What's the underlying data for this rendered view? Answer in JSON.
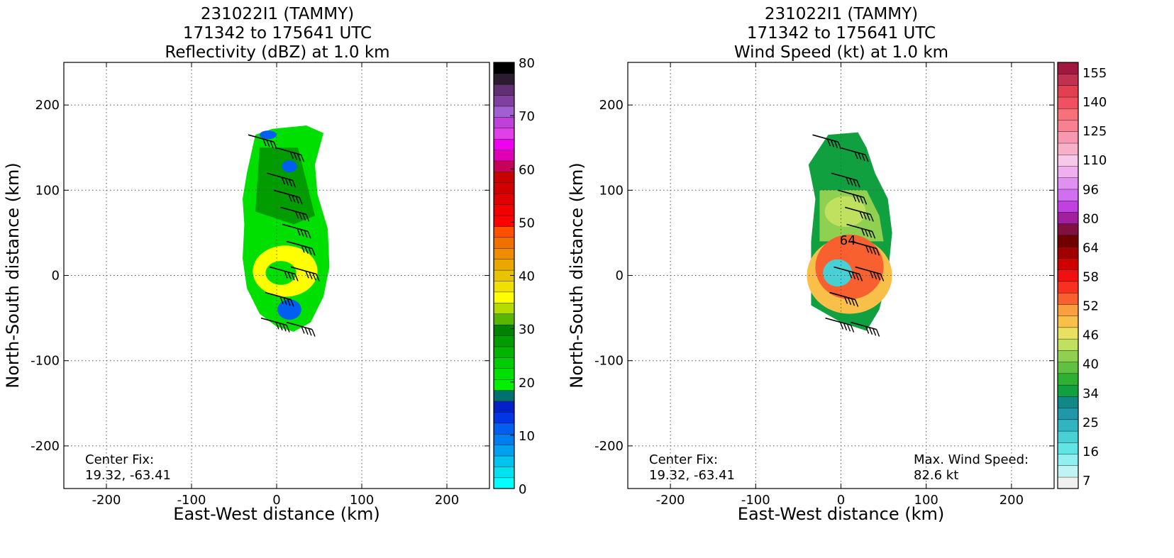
{
  "chart_data": [
    {
      "type": "heatmap",
      "id": "reflectivity",
      "title_lines": [
        "231022I1 (TAMMY)",
        "171342 to 175641 UTC",
        "Reflectivity (dBZ) at 1.0 km"
      ],
      "xlabel": "East-West distance (km)",
      "ylabel": "North-South distance (km)",
      "xlim": [
        -250,
        250
      ],
      "ylim": [
        -250,
        250
      ],
      "xticks": [
        -200,
        -100,
        0,
        100,
        200
      ],
      "yticks": [
        -200,
        -100,
        0,
        100,
        200
      ],
      "grid": true,
      "annotations": [
        {
          "name": "center-fix",
          "lines": [
            "Center Fix:",
            "19.32, -63.41"
          ]
        }
      ],
      "colorbar": {
        "min": 0,
        "max": 80,
        "ticks": [
          0,
          10,
          20,
          30,
          40,
          50,
          60,
          70,
          80
        ],
        "colors": [
          "#00ffff",
          "#00e2f0",
          "#00c3f0",
          "#00a0f0",
          "#007ef0",
          "#005ef0",
          "#0036e6",
          "#0022c8",
          "#007070",
          "#00f000",
          "#00e000",
          "#00cc00",
          "#00b400",
          "#009c00",
          "#008400",
          "#58b800",
          "#b4dc00",
          "#ffff00",
          "#f0e000",
          "#e8c400",
          "#e8a800",
          "#f08c00",
          "#f07000",
          "#ff5000",
          "#ff0000",
          "#f20000",
          "#e00000",
          "#d00000",
          "#c80000",
          "#c8005a",
          "#e000b4",
          "#f000f0",
          "#e040e8",
          "#c040dc",
          "#a060d0",
          "#8040a0",
          "#603070",
          "#2c1c30",
          "#000000"
        ]
      },
      "echo_level_dbz": [
        {
          "zone": "outer",
          "dbz": 22
        },
        {
          "zone": "mid",
          "dbz": 28
        },
        {
          "zone": "eyewall",
          "dbz": 36
        },
        {
          "zone": "weak",
          "dbz": 12
        }
      ]
    },
    {
      "type": "heatmap",
      "id": "wind-speed",
      "title_lines": [
        "231022I1 (TAMMY)",
        "171342 to 175641 UTC",
        "Wind Speed (kt) at 1.0 km"
      ],
      "xlabel": "East-West distance (km)",
      "ylabel": "North-South distance (km)",
      "xlim": [
        -250,
        250
      ],
      "ylim": [
        -250,
        250
      ],
      "xticks": [
        -200,
        -100,
        0,
        100,
        200
      ],
      "yticks": [
        -200,
        -100,
        0,
        100,
        200
      ],
      "grid": true,
      "contour_label": "64",
      "annotations": [
        {
          "name": "center-fix",
          "lines": [
            "Center Fix:",
            "19.32, -63.41"
          ]
        },
        {
          "name": "max-wind",
          "lines": [
            "Max. Wind Speed:",
            "82.6 kt"
          ]
        }
      ],
      "colorbar": {
        "tick_labels": [
          "7",
          "16",
          "25",
          "34",
          "40",
          "46",
          "52",
          "58",
          "64",
          "80",
          "96",
          "110",
          "125",
          "140",
          "155"
        ],
        "colors": [
          "#f0f0f0",
          "#c0f4f4",
          "#90f0f0",
          "#60e4e4",
          "#48d0d4",
          "#30b4c0",
          "#2098a8",
          "#108888",
          "#10a040",
          "#30b030",
          "#60c040",
          "#90d050",
          "#c0e060",
          "#e8e060",
          "#f8c048",
          "#f8a040",
          "#f86030",
          "#f83020",
          "#f01010",
          "#d00000",
          "#a00000",
          "#700000",
          "#801040",
          "#a020a0",
          "#c040e0",
          "#d070f0",
          "#e090f0",
          "#f0b0f0",
          "#f8c8e8",
          "#f8b0c8",
          "#f898b0",
          "#f88090",
          "#f87078",
          "#f05060",
          "#e04050",
          "#c03050",
          "#a01840"
        ]
      },
      "wind_level_kt": [
        {
          "zone": "outer",
          "kt": 38
        },
        {
          "zone": "north-band",
          "kt": 50
        },
        {
          "zone": "band-core",
          "kt": 56
        },
        {
          "zone": "eyewall",
          "kt": 72
        },
        {
          "zone": "ring",
          "kt": 62
        },
        {
          "zone": "eye",
          "kt": 18
        }
      ]
    }
  ]
}
